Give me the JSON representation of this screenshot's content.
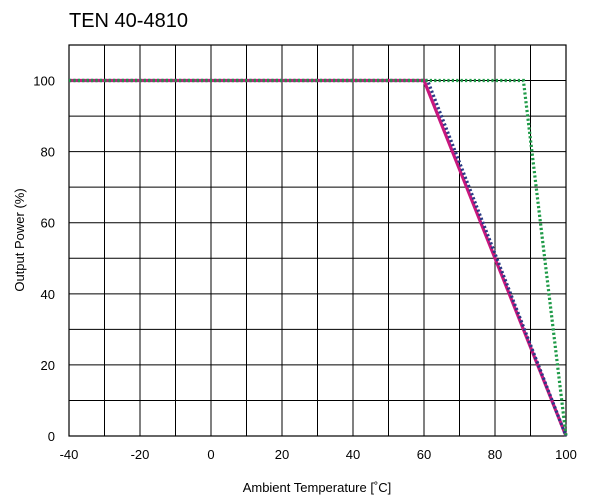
{
  "chart_data": {
    "type": "line",
    "title": "TEN 40-4810",
    "xlabel": "Ambient Temperature [˚C]",
    "ylabel": "Output Power (%)",
    "xlim": [
      -40,
      100
    ],
    "ylim": [
      0,
      110
    ],
    "x_ticks": [
      -40,
      -20,
      0,
      20,
      40,
      60,
      80,
      100
    ],
    "y_ticks": [
      0,
      20,
      40,
      60,
      80,
      100
    ],
    "x_grid_step": 10,
    "y_grid_step": 10,
    "grid": true,
    "legend": "none",
    "series": [
      {
        "color": "#c8177e",
        "style": "solid",
        "points": [
          [
            -40,
            100
          ],
          [
            60,
            100
          ],
          [
            100,
            0
          ]
        ]
      },
      {
        "color": "#2b3a85",
        "style": "dotted",
        "points": [
          [
            -40,
            100
          ],
          [
            61,
            100
          ],
          [
            100,
            0
          ]
        ]
      },
      {
        "color": "#1e9a47",
        "style": "dotted",
        "points": [
          [
            -40,
            100
          ],
          [
            88,
            100
          ],
          [
            100,
            0
          ]
        ]
      }
    ]
  }
}
